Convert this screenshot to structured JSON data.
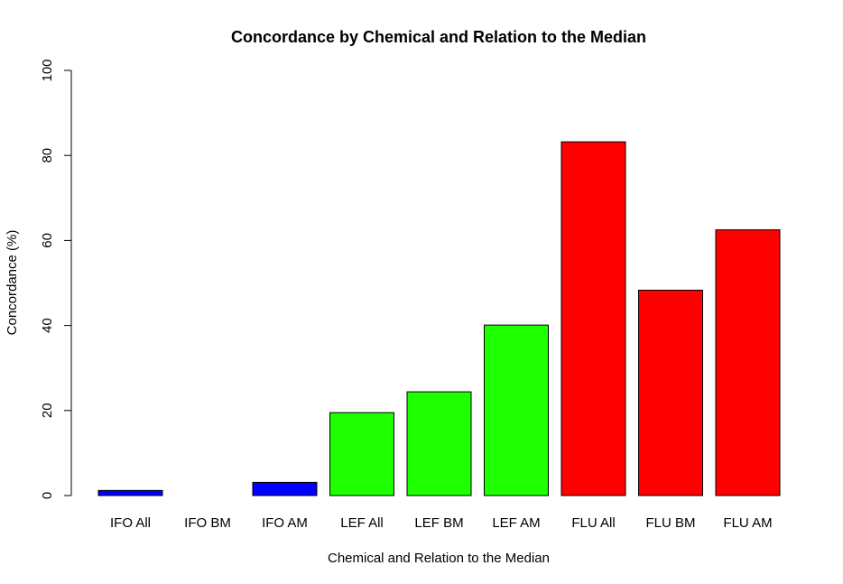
{
  "chart_data": {
    "type": "bar",
    "title": "Concordance by Chemical and Relation to the Median",
    "xlabel": "Chemical and Relation to the Median",
    "ylabel": "Concordance (%)",
    "ylim": [
      0,
      100
    ],
    "yticks": [
      0,
      20,
      40,
      60,
      80,
      100
    ],
    "grid": false,
    "legend": "none",
    "categories": [
      "IFO All",
      "IFO BM",
      "IFO AM",
      "LEF All",
      "LEF BM",
      "LEF AM",
      "FLU All",
      "FLU BM",
      "FLU AM"
    ],
    "values": [
      1.2,
      0,
      3.1,
      19.5,
      24.4,
      40.1,
      83.2,
      48.3,
      62.5
    ],
    "colors": [
      "#0000ff",
      "#0000ff",
      "#0000ff",
      "#1eff00",
      "#1eff00",
      "#1eff00",
      "#ff0000",
      "#ff0000",
      "#ff0000"
    ]
  }
}
